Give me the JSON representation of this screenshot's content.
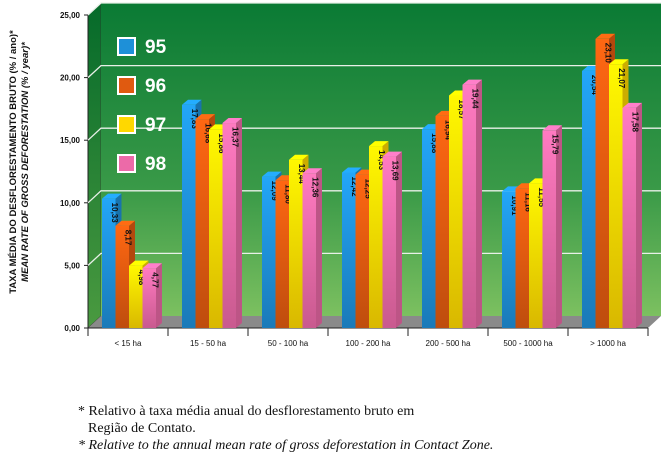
{
  "chart_data": {
    "type": "bar",
    "ylabel": "TAXA MÉDIA DO DESFLORESTAMENTO BRUTO (% / ano)*",
    "ylabel_en": "MEAN RATE OF GROSS DEFORESTATION (% / year)*",
    "ylim": [
      0,
      25
    ],
    "yticks": [
      "0,00",
      "5,00",
      "10,00",
      "15,00",
      "20,00",
      "25,00"
    ],
    "grid": true,
    "legend_placement": "top-left",
    "categories": [
      "< 15 ha",
      "15 - 50 ha",
      "50 - 100 ha",
      "100 - 200 ha",
      "200 - 500 ha",
      "500 - 1000 ha",
      "> 1000 ha"
    ],
    "series": [
      {
        "name": "95",
        "color": "#1e90d8",
        "values": [
          10.33,
          17.83,
          12.09,
          12.42,
          15.88,
          10.91,
          20.54
        ],
        "labels": [
          "10,33",
          "17,83",
          "12,09",
          "12,42",
          "15,88",
          "10,91",
          "20,54"
        ]
      },
      {
        "name": "96",
        "color": "#e05a10",
        "values": [
          8.17,
          16.68,
          11.8,
          12.25,
          16.94,
          11.16,
          23.1
        ],
        "labels": [
          "8,17",
          "16,68",
          "11,80",
          "12,25",
          "16,94",
          "11,16",
          "23,10"
        ]
      },
      {
        "name": "97",
        "color": "#ffd800",
        "values": [
          4.98,
          15.86,
          13.44,
          14.53,
          18.57,
          11.55,
          21.07
        ],
        "labels": [
          "4,98",
          "15,86",
          "13,44",
          "14,53",
          "18,57",
          "11,55",
          "21,07"
        ]
      },
      {
        "name": "98",
        "color": "#ec6aa8",
        "values": [
          4.77,
          16.37,
          12.36,
          13.69,
          19.44,
          15.79,
          17.58
        ],
        "labels": [
          "4,77",
          "16,37",
          "12,36",
          "13,69",
          "19,44",
          "15,79",
          "17,58"
        ]
      }
    ]
  },
  "footnote": {
    "pt_line1": "* Relativo à taxa média anual do desflorestamento bruto em",
    "pt_line2": "Região de Contato.",
    "en": "* Relative to the annual mean rate of gross deforestation in Contact Zone."
  }
}
